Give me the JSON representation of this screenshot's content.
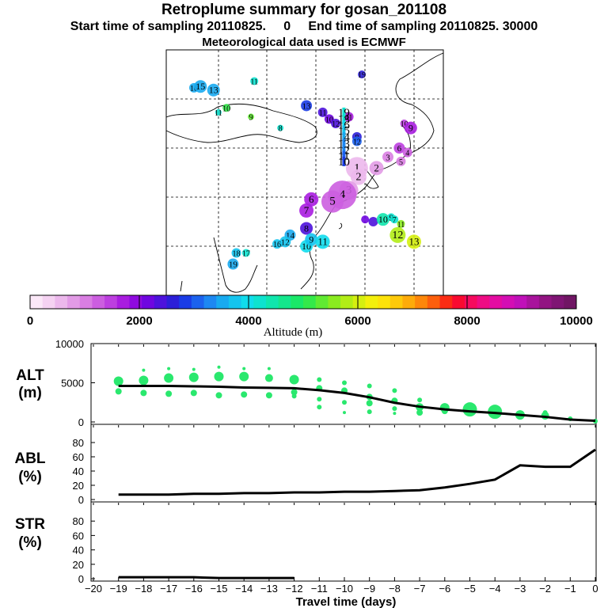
{
  "header": {
    "title": "Retroplume summary for gosan_201108",
    "sampling_line": "Start time of sampling 20110825.     0     End time of sampling 20110825. 30000",
    "met_line": "Meteorological data used is ECMWF"
  },
  "map": {
    "points": [
      {
        "label": "16",
        "lon": 68.5,
        "lat": 56.5,
        "alt": 3600,
        "size": 6
      },
      {
        "label": "15",
        "lon": 70.5,
        "lat": 56.8,
        "alt": 3600,
        "size": 8
      },
      {
        "label": "13",
        "lon": 74.5,
        "lat": 56.0,
        "alt": 3600,
        "size": 8
      },
      {
        "label": "11",
        "lon": 87.0,
        "lat": 58.0,
        "alt": 4300,
        "size": 5
      },
      {
        "label": "11",
        "lon": 76.0,
        "lat": 51.0,
        "alt": 4300,
        "size": 4
      },
      {
        "label": "10",
        "lon": 78.5,
        "lat": 52.0,
        "alt": 5200,
        "size": 5
      },
      {
        "label": "9",
        "lon": 86.0,
        "lat": 50.0,
        "alt": 5400,
        "size": 4
      },
      {
        "label": "8",
        "lon": 95.0,
        "lat": 47.5,
        "alt": 4300,
        "size": 4
      },
      {
        "label": "13",
        "lon": 103.0,
        "lat": 52.5,
        "alt": 2800,
        "size": 7
      },
      {
        "label": "11",
        "lon": 108.0,
        "lat": 51.0,
        "alt": 2300,
        "size": 6
      },
      {
        "label": "10",
        "lon": 110.0,
        "lat": 49.5,
        "alt": 2200,
        "size": 6
      },
      {
        "label": "11",
        "lon": 116.0,
        "lat": 50.0,
        "alt": 1800,
        "size": 6
      },
      {
        "label": "12",
        "lon": 112.0,
        "lat": 48.5,
        "alt": 2400,
        "size": 6
      },
      {
        "label": "8",
        "lon": 118.5,
        "lat": 45.5,
        "alt": 2500,
        "size": 6
      },
      {
        "label": "12",
        "lon": 118.5,
        "lat": 44.5,
        "alt": 3000,
        "size": 6
      },
      {
        "label": "10",
        "lon": 133.0,
        "lat": 48.5,
        "alt": 1500,
        "size": 5
      },
      {
        "label": "9",
        "lon": 135.0,
        "lat": 47.5,
        "alt": 1700,
        "size": 8
      },
      {
        "label": "6",
        "lon": 131.5,
        "lat": 43.0,
        "alt": 1500,
        "size": 7
      },
      {
        "label": "4",
        "lon": 134.0,
        "lat": 42.0,
        "alt": 1300,
        "size": 6
      },
      {
        "label": "3",
        "lon": 128.0,
        "lat": 41.0,
        "alt": 1100,
        "size": 7
      },
      {
        "label": "5",
        "lon": 132.0,
        "lat": 40.0,
        "alt": 1000,
        "size": 6
      },
      {
        "label": "1",
        "lon": 118.5,
        "lat": 38.5,
        "alt": 500,
        "size": 14
      },
      {
        "label": "2",
        "lon": 124.5,
        "lat": 38.5,
        "alt": 700,
        "size": 9
      },
      {
        "label": "2",
        "lon": 119.0,
        "lat": 36.5,
        "alt": 600,
        "size": 10
      },
      {
        "label": "3",
        "lon": 116.0,
        "lat": 33.5,
        "alt": 900,
        "size": 12
      },
      {
        "label": "4",
        "lon": 114.0,
        "lat": 32.5,
        "alt": 1300,
        "size": 18
      },
      {
        "label": "5",
        "lon": 111.0,
        "lat": 31.0,
        "alt": 1200,
        "size": 14
      },
      {
        "label": "6",
        "lon": 104.5,
        "lat": 31.5,
        "alt": 1800,
        "size": 9
      },
      {
        "label": "7",
        "lon": 103.0,
        "lat": 29.0,
        "alt": 1800,
        "size": 9
      },
      {
        "label": "8",
        "lon": 103.0,
        "lat": 25.0,
        "alt": 2400,
        "size": 8
      },
      {
        "label": "14",
        "lon": 98.0,
        "lat": 23.5,
        "alt": 3500,
        "size": 7
      },
      {
        "label": "12",
        "lon": 96.5,
        "lat": 22.0,
        "alt": 3800,
        "size": 7
      },
      {
        "label": "16",
        "lon": 94.0,
        "lat": 21.5,
        "alt": 3800,
        "size": 6
      },
      {
        "label": "10",
        "lon": 103.0,
        "lat": 21.0,
        "alt": 3900,
        "size": 8
      },
      {
        "label": "9",
        "lon": 104.5,
        "lat": 22.5,
        "alt": 3700,
        "size": 8
      },
      {
        "label": "11",
        "lon": 108.0,
        "lat": 22.0,
        "alt": 3900,
        "size": 9
      },
      {
        "label": "18",
        "lon": 81.5,
        "lat": 19.5,
        "alt": 3700,
        "size": 6
      },
      {
        "label": "17",
        "lon": 84.5,
        "lat": 19.5,
        "alt": 4200,
        "size": 5
      },
      {
        "label": "19",
        "lon": 80.5,
        "lat": 17.0,
        "alt": 3500,
        "size": 7
      },
      {
        "label": "",
        "lon": 121.0,
        "lat": 27.0,
        "alt": 2200,
        "size": 5
      },
      {
        "label": "",
        "lon": 123.5,
        "lat": 26.5,
        "alt": 2300,
        "size": 6
      },
      {
        "label": "10",
        "lon": 126.5,
        "lat": 27.0,
        "alt": 4500,
        "size": 8
      },
      {
        "label": "9",
        "lon": 129.0,
        "lat": 27.5,
        "alt": 4300,
        "size": 5
      },
      {
        "label": "7",
        "lon": 130.0,
        "lat": 27.0,
        "alt": 4300,
        "size": 5
      },
      {
        "label": "11",
        "lon": 132.0,
        "lat": 26.0,
        "alt": 5600,
        "size": 5
      },
      {
        "label": "12",
        "lon": 131.0,
        "lat": 23.5,
        "alt": 5800,
        "size": 10
      },
      {
        "label": "13",
        "lon": 136.0,
        "lat": 22.0,
        "alt": 6000,
        "size": 9
      },
      {
        "label": "19",
        "lon": 120.0,
        "lat": 59.5,
        "alt": 2600,
        "size": 5
      }
    ],
    "stack": [
      {
        "label": "19",
        "lat": 51.0,
        "alt": 4300
      },
      {
        "label": "18",
        "lat": 49.5,
        "alt": 4200
      },
      {
        "label": "16",
        "lat": 48.2,
        "alt": 4000
      },
      {
        "label": "15",
        "lat": 47.0,
        "alt": 3800
      },
      {
        "label": "14",
        "lat": 45.5,
        "alt": 3500
      },
      {
        "label": "13",
        "lat": 44.0,
        "alt": 3400
      },
      {
        "label": "12",
        "lat": 42.6,
        "alt": 3300
      },
      {
        "label": "11",
        "lat": 41.3,
        "alt": 3100
      },
      {
        "label": "10",
        "lat": 40.0,
        "alt": 2800
      }
    ]
  },
  "colorbar": {
    "min": 0,
    "max": 10000,
    "tick_labels": [
      "0",
      "2000",
      "4000",
      "6000",
      "8000",
      "10000"
    ],
    "label": "Altitude (m)",
    "colors": [
      "#fbe8f8",
      "#f5d2f2",
      "#ecb8ec",
      "#e29be6",
      "#d97ee2",
      "#cc5ee0",
      "#bd3fe0",
      "#a91de0",
      "#8f0ae0",
      "#6f06e0",
      "#4d12dc",
      "#2c1fd8",
      "#1a3ce6",
      "#1c62ee",
      "#1d88f2",
      "#18aaf0",
      "#14c4ee",
      "#10dcec",
      "#0ee2cf",
      "#10e6ad",
      "#14e78c",
      "#1ae868",
      "#34e94a",
      "#60ea32",
      "#8aeb20",
      "#b2ed16",
      "#d5ef10",
      "#f3ef0c",
      "#fce20a",
      "#fdc90a",
      "#fdab0a",
      "#fd870a",
      "#fc5f0c",
      "#fb2c14",
      "#f90a30",
      "#f60a5e",
      "#ee0c84",
      "#e40ca2",
      "#d40eb4",
      "#c010b9",
      "#a8139c",
      "#921482",
      "#7f1574",
      "#701664"
    ]
  },
  "chart_data": [
    {
      "type": "line",
      "ylabel": "ALT",
      "yunit": "(m)",
      "ylim": [
        0,
        10000
      ],
      "ytick_labels": [
        "10000",
        "5000",
        "0"
      ],
      "x": [
        -19,
        -18,
        -17,
        -16,
        -15,
        -14,
        -13,
        -12,
        -11,
        -10,
        -9,
        -8,
        -7,
        -6,
        -5,
        -4,
        -3,
        -2,
        -1,
        0
      ],
      "mean": [
        4600,
        4600,
        4600,
        4550,
        4500,
        4400,
        4350,
        4300,
        4050,
        3700,
        3150,
        2450,
        1950,
        1600,
        1350,
        1150,
        900,
        650,
        300,
        150
      ],
      "points": [
        {
          "x": -19,
          "y": 5200,
          "r": 6
        },
        {
          "x": -19,
          "y": 3900,
          "r": 4
        },
        {
          "x": -18,
          "y": 5300,
          "r": 6
        },
        {
          "x": -18,
          "y": 6600,
          "r": 2
        },
        {
          "x": -18,
          "y": 3700,
          "r": 4
        },
        {
          "x": -17,
          "y": 5600,
          "r": 6
        },
        {
          "x": -17,
          "y": 6800,
          "r": 2
        },
        {
          "x": -17,
          "y": 3600,
          "r": 4
        },
        {
          "x": -16,
          "y": 5700,
          "r": 6
        },
        {
          "x": -16,
          "y": 6700,
          "r": 2
        },
        {
          "x": -16,
          "y": 3700,
          "r": 4
        },
        {
          "x": -15,
          "y": 5800,
          "r": 6
        },
        {
          "x": -15,
          "y": 7000,
          "r": 2
        },
        {
          "x": -15,
          "y": 3400,
          "r": 4
        },
        {
          "x": -14,
          "y": 5800,
          "r": 6
        },
        {
          "x": -14,
          "y": 6800,
          "r": 2
        },
        {
          "x": -14,
          "y": 3500,
          "r": 4
        },
        {
          "x": -13,
          "y": 5600,
          "r": 5
        },
        {
          "x": -13,
          "y": 6800,
          "r": 2
        },
        {
          "x": -13,
          "y": 3400,
          "r": 4
        },
        {
          "x": -12,
          "y": 5400,
          "r": 6
        },
        {
          "x": -12,
          "y": 3800,
          "r": 4
        },
        {
          "x": -12,
          "y": 3300,
          "r": 3
        },
        {
          "x": -11,
          "y": 5400,
          "r": 3
        },
        {
          "x": -11,
          "y": 4300,
          "r": 4
        },
        {
          "x": -11,
          "y": 2900,
          "r": 3
        },
        {
          "x": -11,
          "y": 1900,
          "r": 3
        },
        {
          "x": -10,
          "y": 5000,
          "r": 3
        },
        {
          "x": -10,
          "y": 4000,
          "r": 4
        },
        {
          "x": -10,
          "y": 2500,
          "r": 3
        },
        {
          "x": -10,
          "y": 1200,
          "r": 2
        },
        {
          "x": -9,
          "y": 4600,
          "r": 3
        },
        {
          "x": -9,
          "y": 3200,
          "r": 4
        },
        {
          "x": -9,
          "y": 2400,
          "r": 4
        },
        {
          "x": -9,
          "y": 1300,
          "r": 3
        },
        {
          "x": -8,
          "y": 4000,
          "r": 3
        },
        {
          "x": -8,
          "y": 2700,
          "r": 4
        },
        {
          "x": -8,
          "y": 1700,
          "r": 3
        },
        {
          "x": -8,
          "y": 1100,
          "r": 2
        },
        {
          "x": -7,
          "y": 2800,
          "r": 3
        },
        {
          "x": -7,
          "y": 1900,
          "r": 5
        },
        {
          "x": -7,
          "y": 1200,
          "r": 4
        },
        {
          "x": -6,
          "y": 1800,
          "r": 6
        },
        {
          "x": -6,
          "y": 1400,
          "r": 4
        },
        {
          "x": -5,
          "y": 1600,
          "r": 9
        },
        {
          "x": -4,
          "y": 1300,
          "r": 9
        },
        {
          "x": -3,
          "y": 900,
          "r": 6
        },
        {
          "x": -2,
          "y": 800,
          "r": 5
        },
        {
          "x": -2,
          "y": 1200,
          "r": 3
        },
        {
          "x": -1,
          "y": 400,
          "r": 3
        },
        {
          "x": 0,
          "y": 100,
          "r": 3
        }
      ]
    },
    {
      "type": "line",
      "ylabel": "ABL",
      "yunit": "(%)",
      "ylim": [
        0,
        90
      ],
      "ytick_labels": [
        "80",
        "60",
        "40",
        "20",
        "0"
      ],
      "x": [
        -19,
        -18,
        -17,
        -16,
        -15,
        -14,
        -13,
        -12,
        -11,
        -10,
        -9,
        -8,
        -7,
        -6,
        -5,
        -4,
        -3,
        -2,
        -1,
        0
      ],
      "values": [
        7,
        7,
        7,
        8,
        8,
        9,
        9,
        10,
        10,
        11,
        11,
        12,
        13,
        17,
        22,
        28,
        48,
        46,
        46,
        70
      ]
    },
    {
      "type": "line",
      "ylabel": "STR",
      "yunit": "(%)",
      "ylim": [
        0,
        90
      ],
      "ytick_labels": [
        "80",
        "60",
        "40",
        "20",
        "0"
      ],
      "x": [
        -19,
        -18,
        -17,
        -16,
        -15,
        -14,
        -13,
        -12
      ],
      "values": [
        2,
        2,
        2,
        2,
        1,
        1,
        1,
        1
      ]
    }
  ],
  "xaxis": {
    "tick_labels": [
      "−20",
      "−19",
      "−18",
      "−17",
      "−16",
      "−15",
      "−14",
      "−13",
      "−12",
      "−11",
      "−10",
      "−9",
      "−8",
      "−7",
      "−6",
      "−5",
      "−4",
      "−3",
      "−2",
      "−1",
      "0"
    ],
    "label": "Travel time (days)"
  }
}
